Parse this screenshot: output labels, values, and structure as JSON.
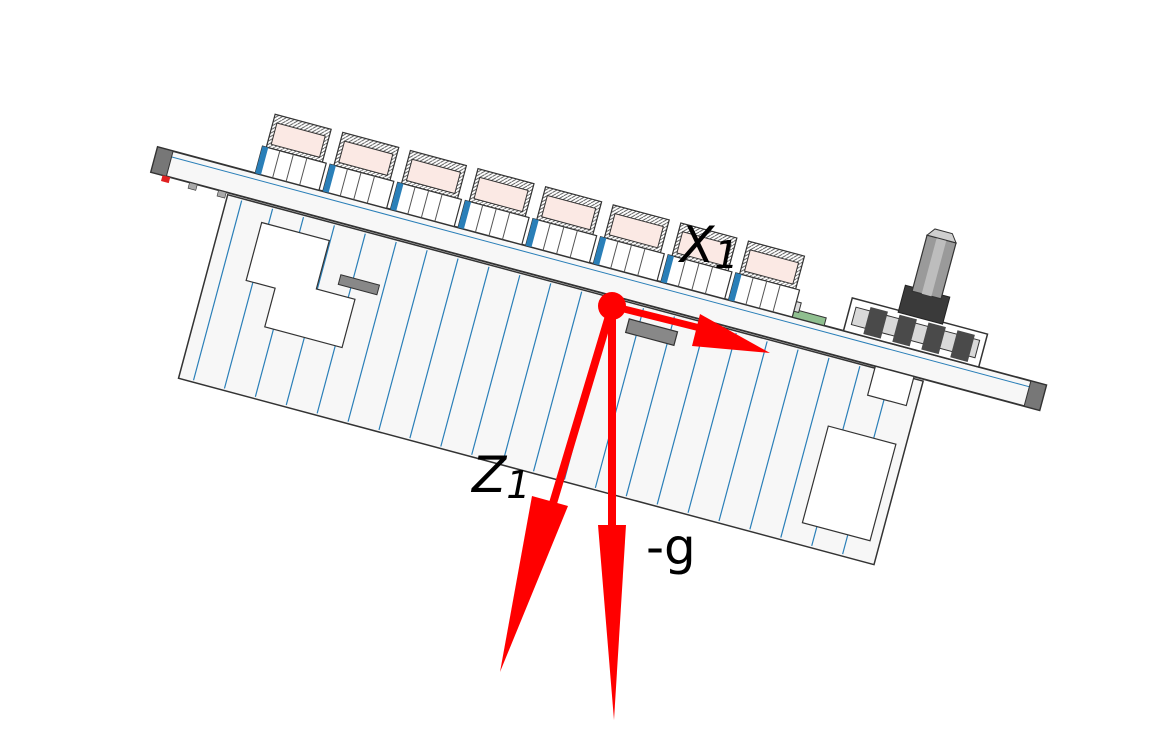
{
  "diagram": {
    "labels": {
      "x_axis": "X",
      "x_axis_sub": "1",
      "z_axis": "Z",
      "z_axis_sub": "1",
      "gravity": "-g"
    },
    "colors": {
      "vector": "#ff0000",
      "board_outline": "#333333",
      "board_fill": "#f7f7f7",
      "accent_blue": "#2a7fb8",
      "connector_fill": "#fbe9e4",
      "knob": "#8a8a8a",
      "knob_dark": "#333333"
    },
    "icons": {
      "origin": "origin-dot-icon",
      "module": "keyboard-module-icon",
      "knob": "rotary-encoder-icon"
    }
  }
}
